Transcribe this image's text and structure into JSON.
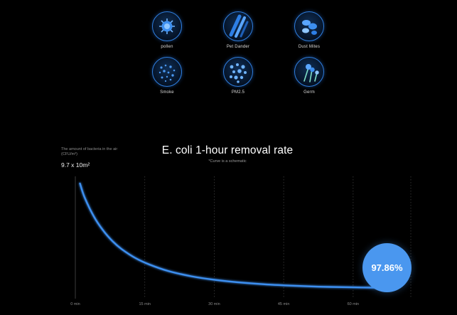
{
  "pollutants": [
    {
      "label": "pollen",
      "icon": "pollen-icon"
    },
    {
      "label": "Pet Dander",
      "icon": "pet-dander-icon"
    },
    {
      "label": "Dust Mites",
      "icon": "dust-mites-icon"
    },
    {
      "label": "Smoke",
      "icon": "smoke-icon"
    },
    {
      "label": "PM2.5",
      "icon": "pm25-icon"
    },
    {
      "label": "Germ",
      "icon": "germ-icon"
    }
  ],
  "chart": {
    "y_note": "The amount of bacteria in the air (CFU/m³)",
    "y_start_label": "9.7 x 10m²",
    "title": "E. coli 1-hour removal rate",
    "subtitle": "*Curve is a schematic",
    "result_label": "97.86%"
  },
  "colors": {
    "accent": "#4a97ef",
    "curve": "#3d8ff0",
    "background": "#000000"
  },
  "chart_data": {
    "type": "line",
    "title": "E. coli 1-hour removal rate",
    "subtitle": "*Curve is a schematic",
    "xlabel": "",
    "ylabel": "The amount of bacteria in the air (CFU/m³)",
    "x_ticks": [
      0,
      15,
      30,
      45,
      60
    ],
    "x_tick_labels": [
      "0 min",
      "15 min",
      "30 min",
      "45 min",
      "60 min"
    ],
    "xlim": [
      0,
      70
    ],
    "ylim": [
      0,
      100
    ],
    "series": [
      {
        "x": [
          1,
          2,
          4,
          6,
          8,
          10,
          13,
          16,
          20,
          25,
          30,
          35,
          40,
          45,
          50,
          55,
          60,
          65,
          67
        ],
        "y": [
          100,
          87,
          69,
          56,
          46,
          38.5,
          30,
          24,
          18,
          13,
          9.7,
          7.4,
          5.7,
          4.5,
          3.6,
          3,
          2.6,
          2.3,
          2.14
        ]
      }
    ],
    "annotation": {
      "text": "97.86%",
      "x": 67
    },
    "grid": "vertical-dashed",
    "legend": "none"
  }
}
